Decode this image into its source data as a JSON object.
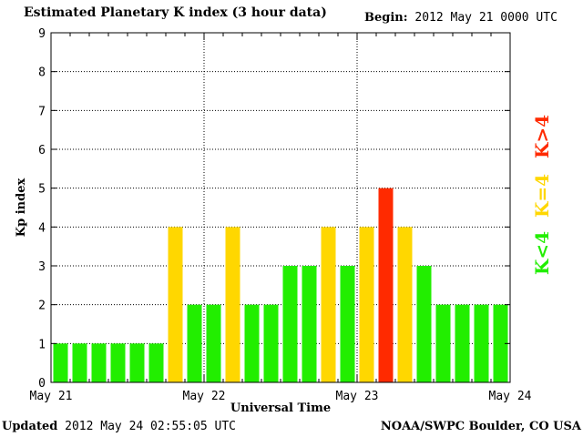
{
  "header": {
    "title": "Estimated Planetary K index (3 hour data)",
    "begin_label": "Begin:",
    "begin_value": "2012 May 21 0000 UTC"
  },
  "footer": {
    "updated_label": "Updated",
    "updated_value": "2012 May 24 02:55:05 UTC",
    "credit": "NOAA/SWPC Boulder, CO USA"
  },
  "colors": {
    "low": "#22ee00",
    "equal": "#ffd700",
    "high": "#ff2a00"
  },
  "chart_data": {
    "type": "bar",
    "title": "Estimated Planetary K index (3 hour data)",
    "xlabel": "Universal Time",
    "ylabel": "Kp index",
    "ylim": [
      0,
      9
    ],
    "yticks": [
      0,
      1,
      2,
      3,
      4,
      5,
      6,
      7,
      8,
      9
    ],
    "xlim_days": [
      0,
      3
    ],
    "xtick_labels": [
      "May 21",
      "May 22",
      "May 23",
      "May 24"
    ],
    "grid": true,
    "interval_hours": 3,
    "values": [
      1,
      1,
      1,
      1,
      1,
      1,
      4,
      2,
      2,
      4,
      2,
      2,
      3,
      3,
      4,
      3,
      4,
      5,
      4,
      3,
      2,
      2,
      2,
      2
    ],
    "legend": [
      {
        "label": "K<4",
        "color_key": "low"
      },
      {
        "label": "K=4",
        "color_key": "equal"
      },
      {
        "label": "K>4",
        "color_key": "high"
      }
    ],
    "legend_placement": "right"
  }
}
